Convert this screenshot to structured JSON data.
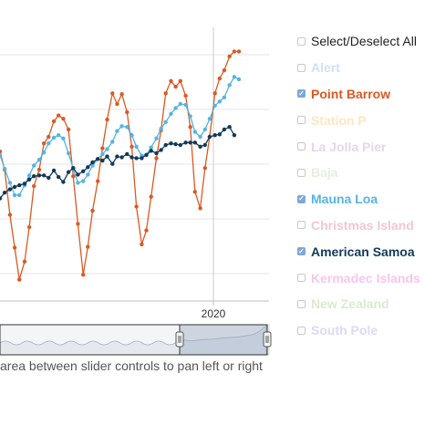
{
  "legend": {
    "select_all": "Select/Deselect All",
    "items": [
      {
        "label": "Alert",
        "color": "#cfe1f2",
        "checked": false
      },
      {
        "label": "Point Barrow",
        "color": "#d95a23",
        "checked": true
      },
      {
        "label": "Station P",
        "color": "#fde6c2",
        "checked": false
      },
      {
        "label": "La Jolla Pier",
        "color": "#e7d7e8",
        "checked": false
      },
      {
        "label": "Baja",
        "color": "#e4f0e0",
        "checked": false
      },
      {
        "label": "Mauna Loa",
        "color": "#55b4e4",
        "checked": true
      },
      {
        "label": "Christmas Island",
        "color": "#f1c8d2",
        "checked": false
      },
      {
        "label": "American Samoa",
        "color": "#123a5a",
        "checked": true
      },
      {
        "label": "Kermadec Islands",
        "color": "#f7c6ee",
        "checked": false
      },
      {
        "label": "New Zealand",
        "color": "#d8eccd",
        "checked": false
      },
      {
        "label": "South Pole",
        "color": "#dcdaf5",
        "checked": false
      }
    ]
  },
  "navigator": {
    "hint": "area between slider controls to pan left or right"
  },
  "chart_data": {
    "type": "line",
    "x_tick_labels": [
      "2020"
    ],
    "grid": true,
    "series": [
      {
        "name": "Point Barrow",
        "color": "#d95a23",
        "x": [
          2016.4,
          2016.48,
          2016.57,
          2016.65,
          2016.73,
          2016.82,
          2016.9,
          2016.98,
          2017.07,
          2017.15,
          2017.23,
          2017.32,
          2017.4,
          2017.48,
          2017.57,
          2017.65,
          2017.73,
          2017.82,
          2017.9,
          2017.98,
          2018.07,
          2018.15,
          2018.23,
          2018.32,
          2018.4,
          2018.48,
          2018.57,
          2018.65,
          2018.73,
          2018.82,
          2018.9,
          2018.98,
          2019.07,
          2019.15,
          2019.23,
          2019.32,
          2019.4,
          2019.48,
          2019.57,
          2019.65,
          2019.73,
          2019.82,
          2019.9,
          2019.98,
          2020.07,
          2020.15,
          2020.23,
          2020.32,
          2020.4,
          2020.48
        ],
        "y": [
          408.2,
          406.0,
          400.5,
          396.5,
          392.6,
          394.8,
          399.0,
          404.0,
          406.0,
          409.2,
          410.0,
          411.9,
          412.6,
          412.2,
          410.9,
          405.2,
          399.4,
          393.2,
          396.6,
          401.0,
          404.6,
          408.6,
          412.1,
          415.3,
          414.0,
          415.2,
          413.0,
          408.8,
          401.5,
          396.9,
          398.6,
          402.7,
          407.4,
          410.8,
          415.3,
          416.8,
          416.1,
          416.8,
          415.0,
          411.2,
          403.3,
          401.3,
          406.2,
          410.0,
          415.3,
          417.1,
          418.1,
          419.8,
          420.4,
          420.4
        ]
      },
      {
        "name": "Mauna Loa",
        "color": "#55b4e4",
        "x": [
          2016.4,
          2016.48,
          2016.57,
          2016.65,
          2016.73,
          2016.82,
          2016.9,
          2016.98,
          2017.07,
          2017.15,
          2017.23,
          2017.32,
          2017.4,
          2017.48,
          2017.57,
          2017.65,
          2017.73,
          2017.82,
          2017.9,
          2017.98,
          2018.07,
          2018.15,
          2018.23,
          2018.32,
          2018.4,
          2018.48,
          2018.57,
          2018.65,
          2018.73,
          2018.82,
          2018.9,
          2018.98,
          2019.07,
          2019.15,
          2019.23,
          2019.32,
          2019.4,
          2019.48,
          2019.57,
          2019.65,
          2019.73,
          2019.82,
          2019.9,
          2019.98,
          2020.07,
          2020.15,
          2020.23,
          2020.32,
          2020.4,
          2020.48
        ],
        "y": [
          407.8,
          406.1,
          404.4,
          402.9,
          402.9,
          404.1,
          405.3,
          406.5,
          407.2,
          408.1,
          409.2,
          409.9,
          410.2,
          409.8,
          408.0,
          406.1,
          404.4,
          404.6,
          405.4,
          406.5,
          407.3,
          407.9,
          408.5,
          409.4,
          410.7,
          411.3,
          411.2,
          410.2,
          408.8,
          407.7,
          407.8,
          408.7,
          409.8,
          411.0,
          411.8,
          412.8,
          413.5,
          414.0,
          413.9,
          412.5,
          410.6,
          410.0,
          410.9,
          412.2,
          413.8,
          414.3,
          414.8,
          416.3,
          417.3,
          417.0
        ]
      },
      {
        "name": "American Samoa",
        "color": "#123a5a",
        "x": [
          2016.4,
          2016.48,
          2016.57,
          2016.65,
          2016.73,
          2016.82,
          2016.9,
          2016.98,
          2017.07,
          2017.15,
          2017.23,
          2017.32,
          2017.4,
          2017.48,
          2017.57,
          2017.65,
          2017.73,
          2017.82,
          2017.9,
          2017.98,
          2018.07,
          2018.15,
          2018.23,
          2018.32,
          2018.4,
          2018.48,
          2018.57,
          2018.65,
          2018.73,
          2018.82,
          2018.9,
          2018.98,
          2019.07,
          2019.15,
          2019.23,
          2019.32,
          2019.4,
          2019.48,
          2019.57,
          2019.65,
          2019.73,
          2019.82,
          2019.9,
          2019.98,
          2020.07,
          2020.15,
          2020.23,
          2020.32,
          2020.4
        ],
        "y": [
          402.5,
          403.2,
          403.6,
          403.9,
          404.1,
          404.3,
          404.8,
          405.2,
          405.3,
          405.3,
          405.0,
          405.9,
          405.1,
          404.5,
          405.7,
          406.2,
          405.4,
          405.8,
          406.3,
          406.9,
          407.3,
          407.1,
          407.6,
          406.7,
          407.6,
          407.5,
          407.9,
          407.5,
          407.4,
          407.4,
          407.8,
          408.3,
          408.0,
          408.4,
          409.0,
          409.2,
          409.1,
          409.0,
          409.3,
          409.3,
          409.3,
          408.8,
          409.0,
          410.0,
          410.2,
          410.3,
          410.9,
          411.2,
          410.2
        ]
      }
    ]
  }
}
